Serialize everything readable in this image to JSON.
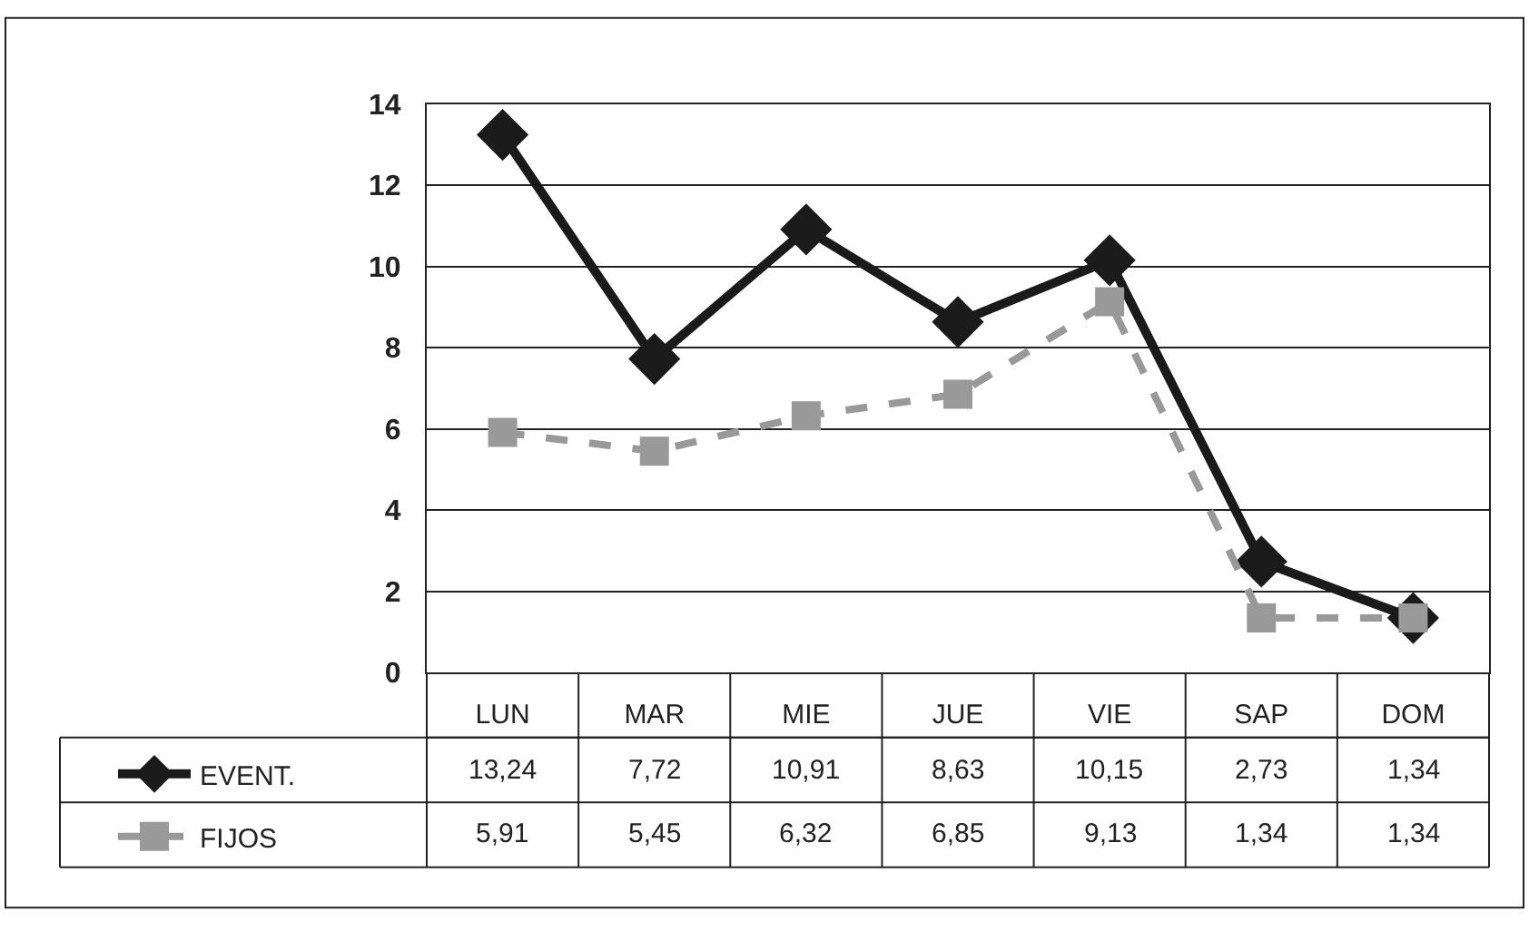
{
  "chart_data": {
    "type": "line",
    "categories": [
      "LUN",
      "MAR",
      "MIE",
      "JUE",
      "VIE",
      "SAP",
      "DOM"
    ],
    "series": [
      {
        "name": "EVENT.",
        "color": "#1a1a1a",
        "values": [
          13.24,
          7.72,
          10.91,
          8.63,
          10.15,
          2.73,
          1.34
        ],
        "value_labels": [
          "13,24",
          "7,72",
          "10,91",
          "8,63",
          "10,15",
          "2,73",
          "1,34"
        ],
        "marker": "diamond",
        "line_style": "solid"
      },
      {
        "name": "FIJOS",
        "color": "#999999",
        "values": [
          5.91,
          5.45,
          6.32,
          6.85,
          9.13,
          1.34,
          1.34
        ],
        "value_labels": [
          "5,91",
          "5,45",
          "6,32",
          "6,85",
          "9,13",
          "1,34",
          "1,34"
        ],
        "marker": "square",
        "line_style": "dashed"
      }
    ],
    "ylim": [
      0,
      14
    ],
    "yticks": [
      0,
      2,
      4,
      6,
      8,
      10,
      12,
      14
    ],
    "grid": "y",
    "legend": "bottom"
  }
}
